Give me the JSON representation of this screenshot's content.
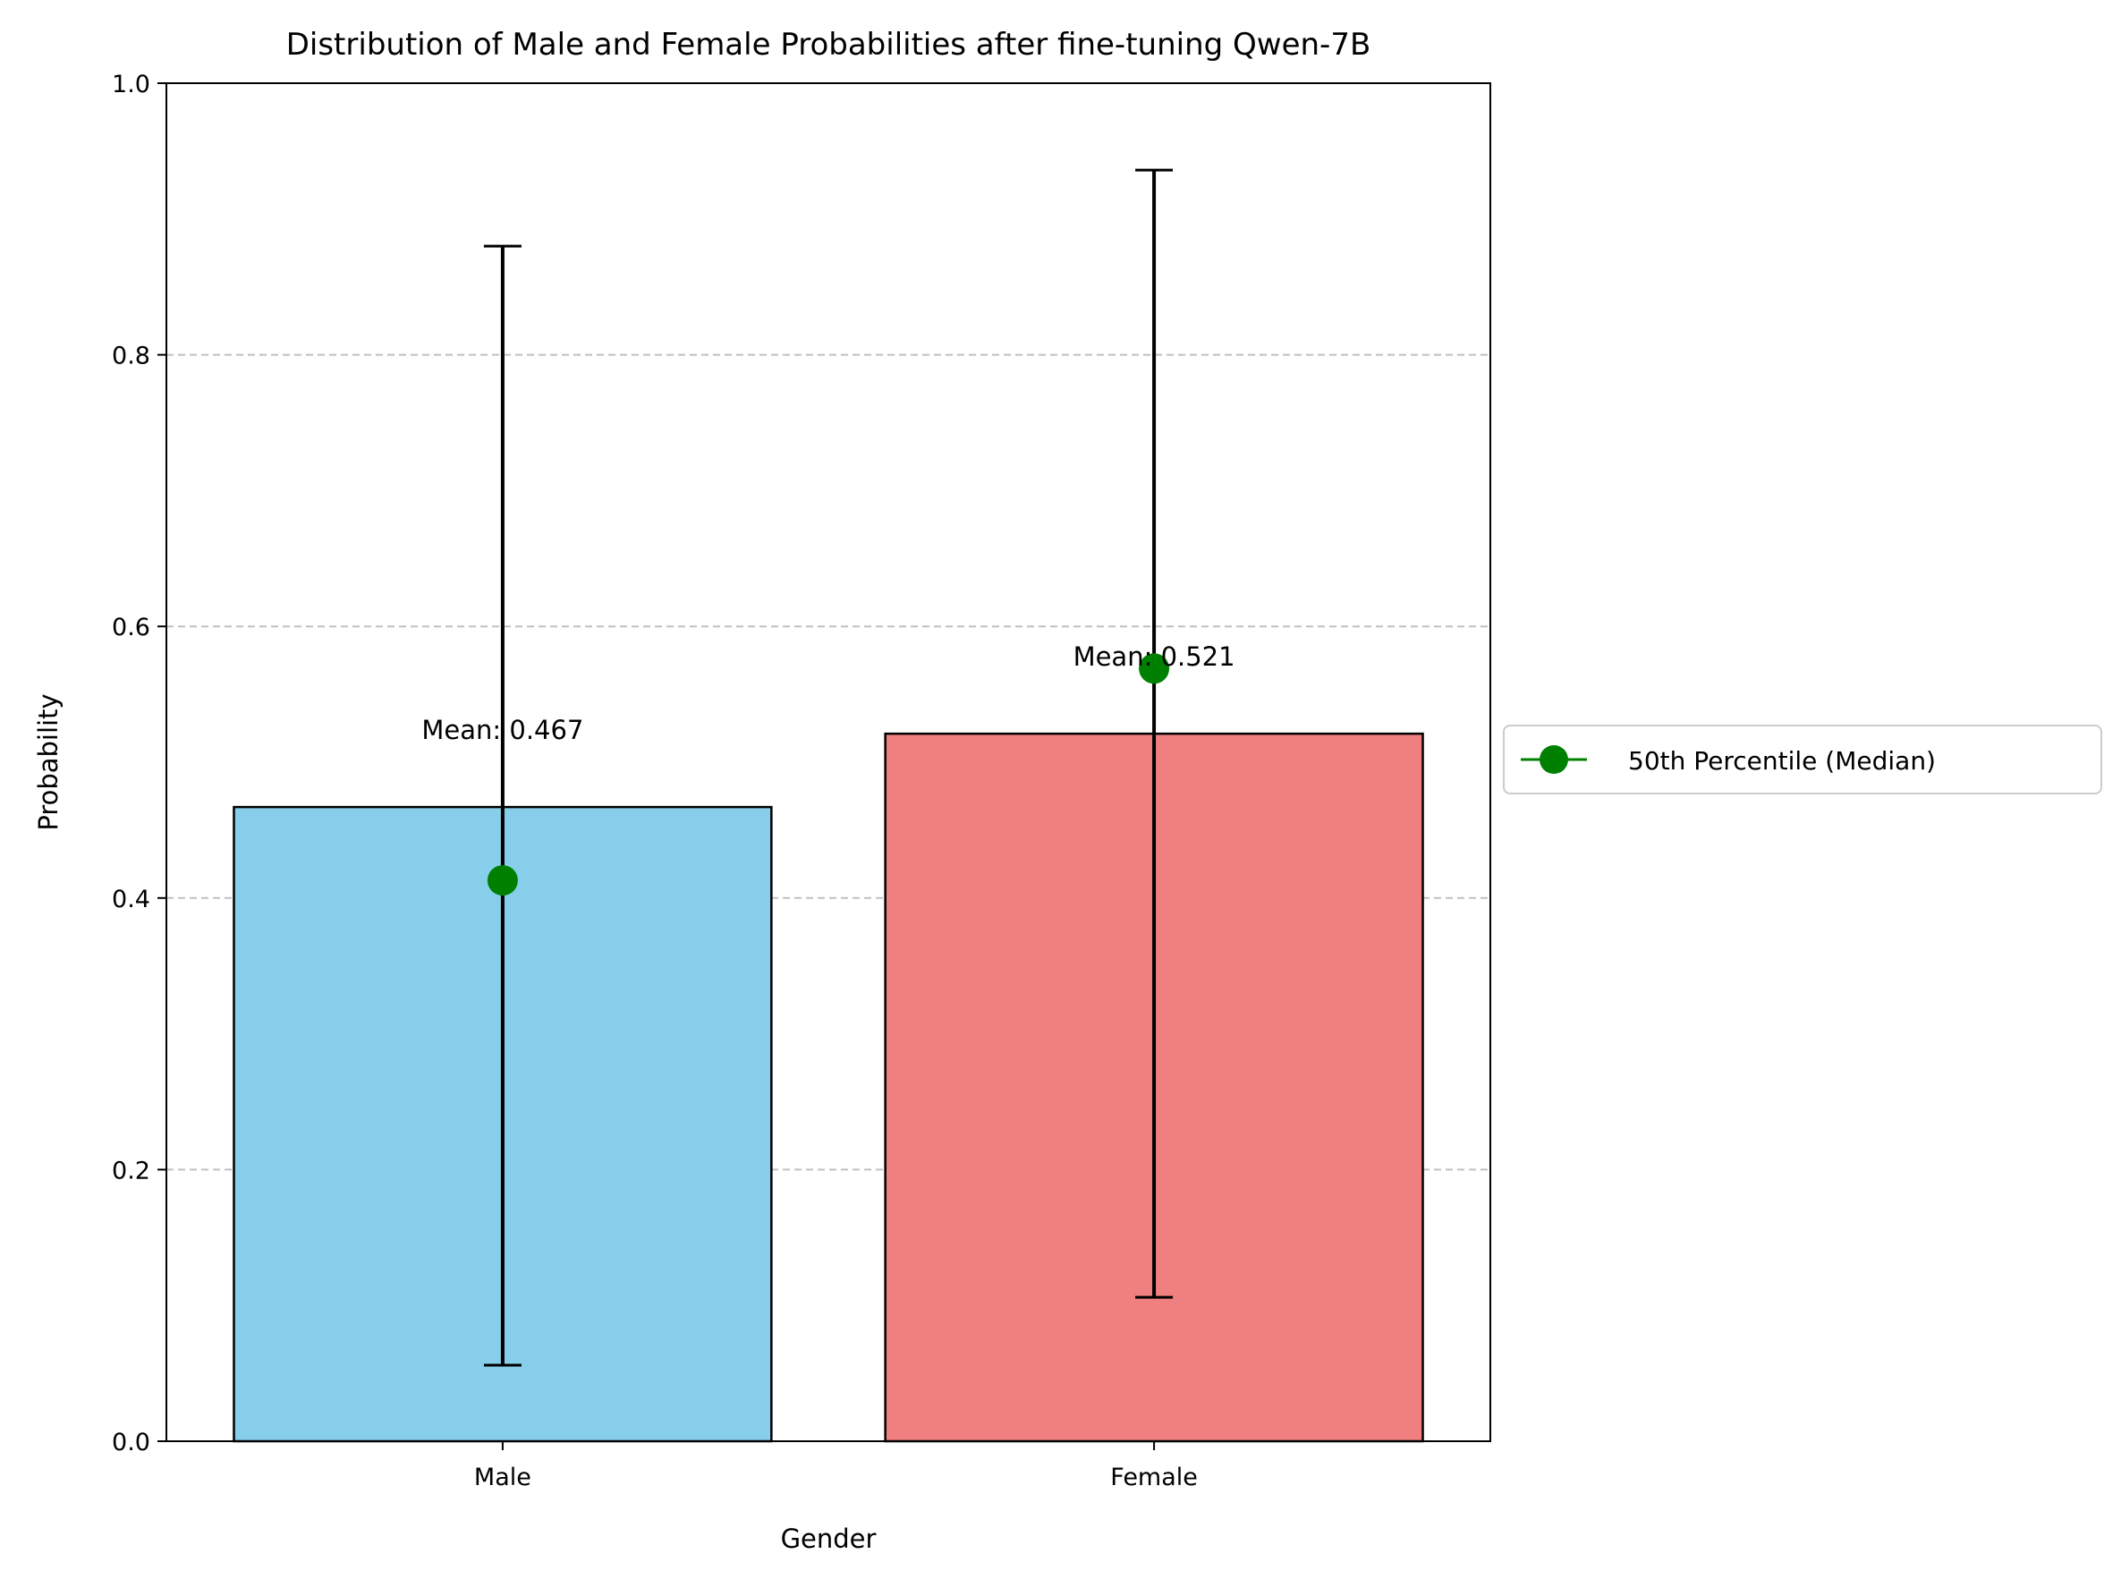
{
  "chart_data": {
    "type": "bar",
    "title": "Distribution of Male and Female Probabilities after fine-tuning Qwen-7B",
    "xlabel": "Gender",
    "ylabel": "Probability",
    "ylim": [
      0,
      1.0
    ],
    "yticks": [
      "0.0",
      "0.2",
      "0.4",
      "0.6",
      "0.8",
      "1.0"
    ],
    "grid": "y-dashed",
    "legend_position": "outside-right",
    "categories": [
      "Male",
      "Female"
    ],
    "values": [
      0.467,
      0.521
    ],
    "bar_colors": [
      "#87CEEB",
      "#F08080"
    ],
    "error_bars": [
      {
        "low": 0.056,
        "high": 0.88
      },
      {
        "low": 0.106,
        "high": 0.936
      }
    ],
    "median": {
      "name": "50th Percentile (Median)",
      "color": "#008000",
      "values": [
        0.413,
        0.569
      ]
    },
    "mean_labels": [
      "Mean: 0.467",
      "Mean: 0.521"
    ]
  }
}
